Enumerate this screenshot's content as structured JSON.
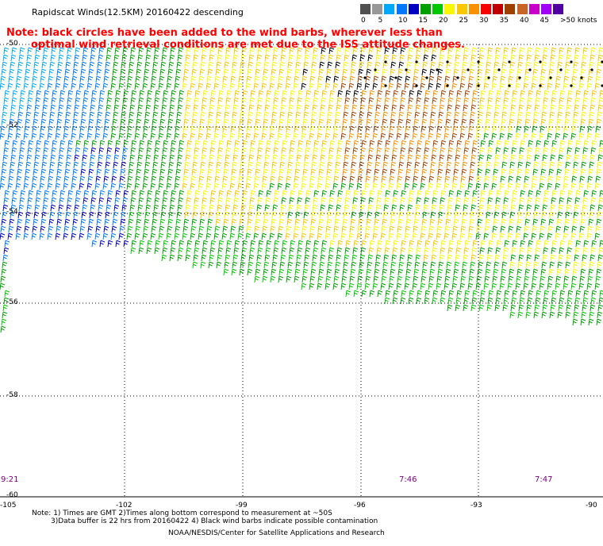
{
  "header": {
    "title": "Rapidscat Winds(12.5KM) 20160422 descending"
  },
  "notice": {
    "line1": "Note: black circles have been added to the wind barbs, wherever less than",
    "line2": "optimal wind retrieval conditions are met due to the ISS attitude changes."
  },
  "legend": {
    "colors": [
      "#505050",
      "#989898",
      "#00a8f8",
      "#0078f8",
      "#0000c0",
      "#00a000",
      "#00c800",
      "#f8f800",
      "#f8c800",
      "#f89000",
      "#f80000",
      "#c00000",
      "#a04000",
      "#c86428",
      "#c800c8",
      "#a000f8",
      "#5000a0"
    ],
    "ticks": [
      "0",
      "5",
      "10",
      "15",
      "20",
      "25",
      "30",
      "35",
      "40",
      "45",
      ">50 knots"
    ]
  },
  "map": {
    "latitude_labels": [
      "-50",
      "-52",
      "-54",
      "-56",
      "-58",
      "-60"
    ],
    "longitude_labels": [
      "-105",
      "-102",
      "-99",
      "-96",
      "-93",
      "-90"
    ],
    "time_labels": [
      "9:21",
      "7:46",
      "7:47"
    ]
  },
  "footer": {
    "note_line1": "Note: 1) Times are GMT 2)Times along bottom correspond to measurement at ~50S",
    "note_line2": "3)Data buffer is 22 hrs from 20160422 4) Black wind barbs indicate possible contamination",
    "credit": "NOAA/NESDIS/Center for Satellite Applications and Research"
  }
}
